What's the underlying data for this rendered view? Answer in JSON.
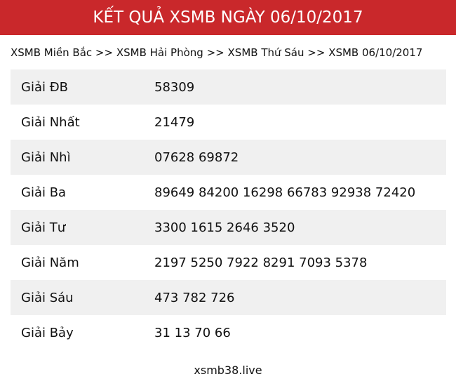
{
  "header": {
    "title": "KẾT QUẢ XSMB NGÀY 06/10/2017"
  },
  "breadcrumb": [
    "XSMB Miền Bắc",
    "XSMB Hải Phòng",
    "XSMB Thứ Sáu",
    "XSMB 06/10/2017"
  ],
  "breadcrumb_separator": ">>",
  "prizes": [
    {
      "label": "Giải ĐB",
      "value": "58309"
    },
    {
      "label": "Giải Nhất",
      "value": "21479"
    },
    {
      "label": "Giải Nhì",
      "value": "07628 69872"
    },
    {
      "label": "Giải Ba",
      "value": "89649 84200 16298 66783 92938 72420"
    },
    {
      "label": "Giải Tư",
      "value": "3300 1615 2646 3520"
    },
    {
      "label": "Giải Năm",
      "value": "2197 5250 7922 8291 7093 5378"
    },
    {
      "label": "Giải Sáu",
      "value": "473 782 726"
    },
    {
      "label": "Giải Bảy",
      "value": "31 13 70 66"
    }
  ],
  "footer": {
    "site": "xsmb38.live"
  },
  "colors": {
    "header_bg": "#c9282b",
    "row_alt": "#f0f0f0"
  }
}
